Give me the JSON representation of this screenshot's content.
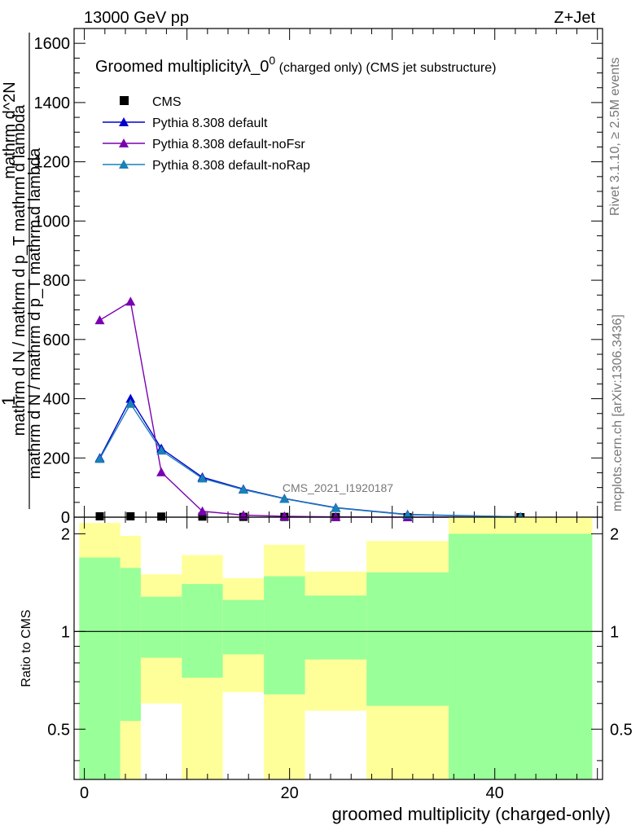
{
  "header": {
    "left": "13000 GeV pp",
    "right": "Z+Jet"
  },
  "side": {
    "rivet": "Rivet 3.1.10, ≥ 2.5M events",
    "mcplots": "mcplots.cern.ch [arXiv:1306.3436]"
  },
  "chart_data": [
    {
      "type": "line",
      "title_main": "Groomed multiplicityλ_0",
      "title_sup": "0",
      "title_extra": " (charged only) (CMS jet substructure)",
      "watermark": "CMS_2021_I1920187",
      "ylabel_top": "1",
      "ylabel_num": "mathrm d N / mathrm d p_T mathrm d lambda",
      "ylabel_den": "mathrm d N / mathrm d p_T mathrm d lambda",
      "ylabel_frac_num": "mathrm d^2N",
      "xlim": [
        -1,
        50.5
      ],
      "ylim": [
        0,
        1650
      ],
      "yticks": [
        0,
        200,
        400,
        600,
        800,
        1000,
        1200,
        1400,
        1600
      ],
      "ytick_labels": [
        "0",
        "200",
        "400",
        "600",
        "800",
        "1000",
        "1200",
        "1400",
        "1600"
      ],
      "legend_position": "top-left",
      "x": [
        1.5,
        4.5,
        7.5,
        11.5,
        15.5,
        19.5,
        24.5,
        31.5,
        42.5
      ],
      "series": [
        {
          "name": "CMS",
          "color": "#000000",
          "marker": "square",
          "values": [
            3,
            3,
            2,
            2,
            1,
            1,
            0.5,
            0.2,
            0.05
          ]
        },
        {
          "name": "Pythia 8.308 default",
          "color": "#0000cc",
          "marker": "triangle",
          "values": [
            200,
            400,
            232,
            135,
            95,
            63,
            32,
            9,
            1
          ]
        },
        {
          "name": "Pythia 8.308 default-noFsr",
          "color": "#7a00b0",
          "marker": "triangle",
          "values": [
            665,
            728,
            152,
            20,
            7,
            3,
            1,
            0.3,
            0.05
          ]
        },
        {
          "name": "Pythia 8.308 default-noRap",
          "color": "#1a80b8",
          "marker": "triangle",
          "values": [
            197,
            383,
            225,
            131,
            93,
            62,
            31,
            8,
            1
          ]
        }
      ]
    },
    {
      "type": "area",
      "ylabel": "Ratio to CMS",
      "xlabel": "groomed multiplicity (charged-only)",
      "xlim": [
        -1,
        50.5
      ],
      "ylim": [
        0.35,
        2.25
      ],
      "yticks": [
        0.5,
        1,
        2
      ],
      "ytick_labels": [
        "0.5",
        "1",
        "2"
      ],
      "xticks": [
        0,
        20,
        40
      ],
      "xtick_labels": [
        "0",
        "20",
        "40"
      ],
      "colors": {
        "inner": "#99ff99",
        "outer": "#ffff99"
      },
      "bins": [
        {
          "lo": -0.5,
          "hi": 3.5,
          "in_lo": 0.35,
          "in_hi": 1.69,
          "out_lo": 0.35,
          "out_hi": 2.16
        },
        {
          "lo": 3.5,
          "hi": 5.5,
          "in_lo": 0.53,
          "in_hi": 1.57,
          "out_lo": 0.35,
          "out_hi": 1.97
        },
        {
          "lo": 5.5,
          "hi": 9.5,
          "in_lo": 0.83,
          "in_hi": 1.28,
          "out_lo": 0.6,
          "out_hi": 1.5
        },
        {
          "lo": 9.5,
          "hi": 13.5,
          "in_lo": 0.72,
          "in_hi": 1.4,
          "out_lo": 0.35,
          "out_hi": 1.72
        },
        {
          "lo": 13.5,
          "hi": 17.5,
          "in_lo": 0.85,
          "in_hi": 1.25,
          "out_lo": 0.65,
          "out_hi": 1.46
        },
        {
          "lo": 17.5,
          "hi": 21.5,
          "in_lo": 0.64,
          "in_hi": 1.48,
          "out_lo": 0.35,
          "out_hi": 1.85
        },
        {
          "lo": 21.5,
          "hi": 27.5,
          "in_lo": 0.82,
          "in_hi": 1.29,
          "out_lo": 0.57,
          "out_hi": 1.53
        },
        {
          "lo": 27.5,
          "hi": 35.5,
          "in_lo": 0.59,
          "in_hi": 1.52,
          "out_lo": 0.35,
          "out_hi": 1.9
        },
        {
          "lo": 35.5,
          "hi": 49.5,
          "in_lo": 0.35,
          "in_hi": 2.0,
          "out_lo": 0.35,
          "out_hi": 2.25
        }
      ]
    }
  ]
}
